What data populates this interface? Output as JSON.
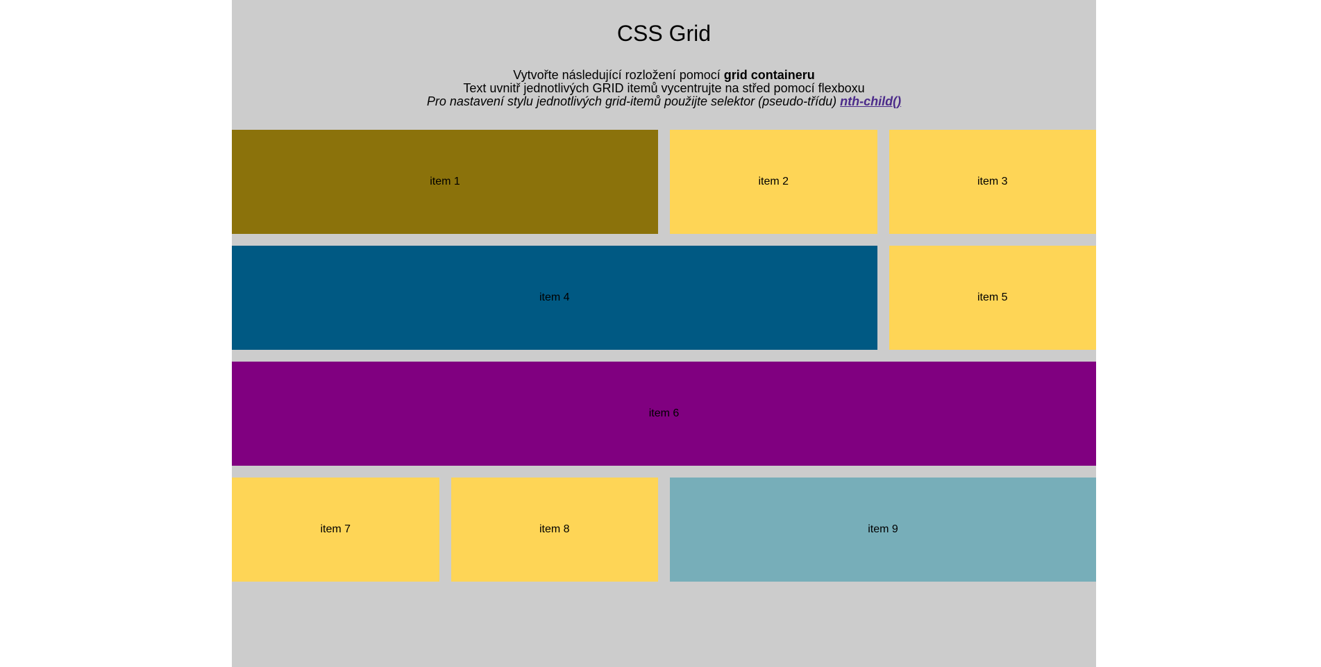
{
  "header": {
    "title": "CSS Grid",
    "line1_prefix": "Vytvořte následující rozložení pomocí ",
    "line1_bold": "grid containeru",
    "line2": "Text uvnitř jednotlivých GRID itemů vycentrujte na střed pomocí flexboxu",
    "line3_prefix": "Pro nastavení stylu jednotlivých grid-itemů použijte selektor (pseudo-třídu) ",
    "line3_link": "nth-child()"
  },
  "grid": {
    "items": [
      {
        "label": "item 1",
        "color": "#8b720b"
      },
      {
        "label": "item 2",
        "color": "#fed556"
      },
      {
        "label": "item 3",
        "color": "#fed556"
      },
      {
        "label": "item 4",
        "color": "#005983"
      },
      {
        "label": "item 5",
        "color": "#fed556"
      },
      {
        "label": "item 6",
        "color": "#800080"
      },
      {
        "label": "item 7",
        "color": "#fed556"
      },
      {
        "label": "item 8",
        "color": "#fed556"
      },
      {
        "label": "item 9",
        "color": "#77aeb9"
      }
    ]
  },
  "colors": {
    "page_background": "#cccccc",
    "link": "#4b2a8a"
  }
}
